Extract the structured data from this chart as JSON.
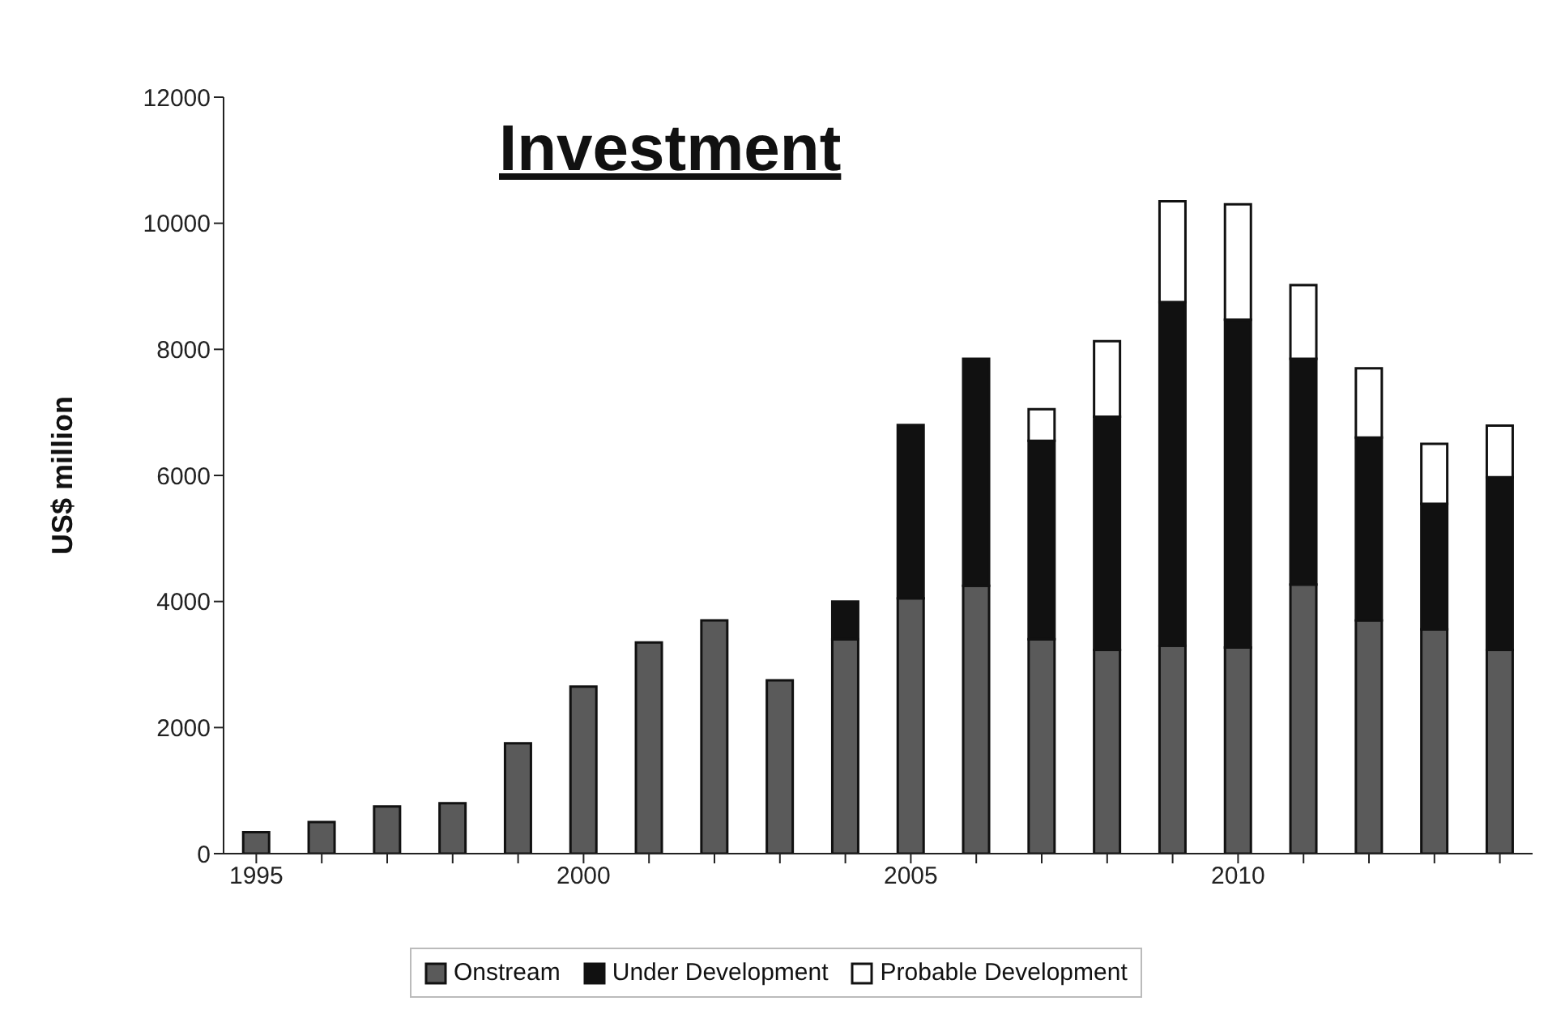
{
  "chart_data": {
    "type": "bar",
    "title": "Investment",
    "ylabel": "US$ million",
    "stacked": true,
    "legend": "bottom",
    "categories": [
      "1995",
      null,
      null,
      null,
      null,
      "2000",
      null,
      null,
      null,
      null,
      "2005",
      null,
      null,
      null,
      null,
      "2010",
      null,
      null,
      null,
      null
    ],
    "series": [
      {
        "name": "Onstream",
        "color": "#5a5a5a",
        "values": [
          340,
          500,
          750,
          800,
          1750,
          2650,
          3350,
          3700,
          2750,
          3400,
          4050,
          4250,
          3400,
          3230,
          3300,
          3270,
          4270,
          3700,
          3560,
          3230
        ]
      },
      {
        "name": "Under Development",
        "color": "#111111",
        "values": [
          null,
          null,
          null,
          null,
          null,
          null,
          null,
          null,
          null,
          600,
          2750,
          3600,
          3150,
          3700,
          5450,
          5200,
          3580,
          2900,
          1990,
          2740
        ]
      },
      {
        "name": "Probable Development",
        "color": "#ffffff",
        "values": [
          null,
          null,
          null,
          null,
          null,
          null,
          null,
          null,
          null,
          null,
          null,
          null,
          500,
          1200,
          1600,
          1830,
          1170,
          1100,
          950,
          820
        ]
      }
    ],
    "ylim": [
      0,
      12000
    ],
    "yticks": [
      0,
      2000,
      4000,
      6000,
      8000,
      10000,
      12000
    ]
  }
}
